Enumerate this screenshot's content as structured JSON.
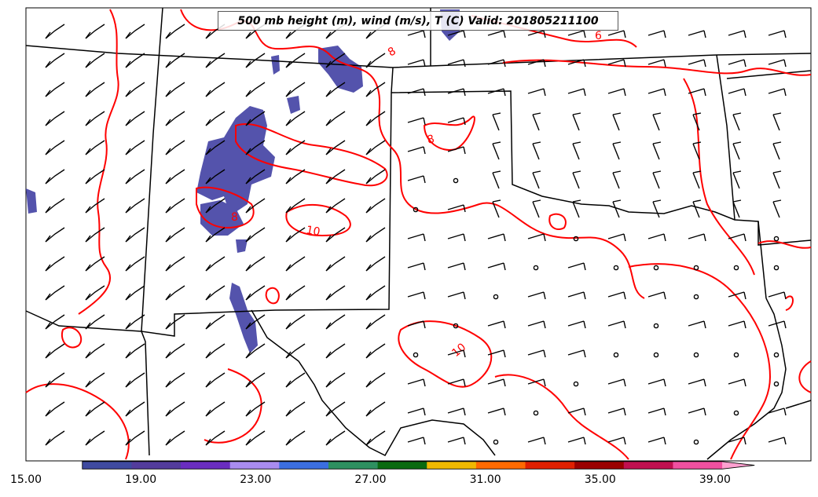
{
  "title": "500 mb height (m), wind (m/s), T (C) Valid: 201805211100",
  "contour_labels": [
    "8",
    "6",
    "8",
    "8",
    "10",
    "10"
  ],
  "colorbar": {
    "ticks": [
      "15.00",
      "19.00",
      "23.00",
      "27.00",
      "31.00",
      "35.00",
      "39.00"
    ],
    "colors": [
      "#3f4aa0",
      "#533c9c",
      "#6a2dc0",
      "#a98cf0",
      "#3b6ee0",
      "#2e9060",
      "#0a6a10",
      "#f0b800",
      "#ff6a00",
      "#e02000",
      "#9a0000",
      "#c01050",
      "#f050a0",
      "#ffa0d0"
    ]
  },
  "colors": {
    "isotherm": "#ff0000",
    "shading": "#4b4aa8",
    "boundary": "#000000"
  }
}
